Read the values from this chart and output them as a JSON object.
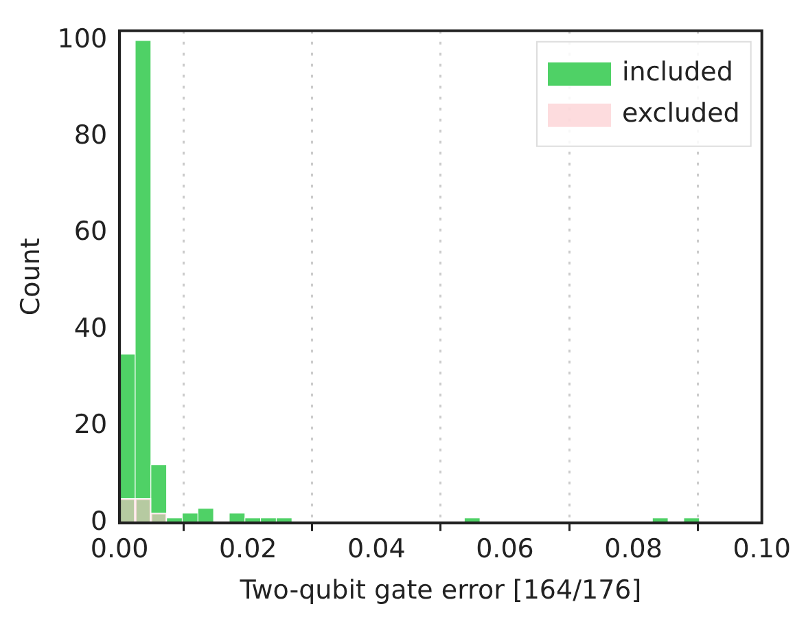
{
  "chart_data": {
    "type": "histogram",
    "xlabel": "Two-qubit gate error [164/176]",
    "ylabel": "Count",
    "bins": [
      0,
      0.00244,
      0.00488,
      0.00732,
      0.00976,
      0.0122,
      0.01464,
      0.01708,
      0.01952,
      0.02196,
      0.0244,
      0.02684,
      0.02928,
      0.03172,
      0.03416,
      0.0366,
      0.03904,
      0.04148,
      0.04392,
      0.04636,
      0.0488,
      0.05124,
      0.05368,
      0.05612,
      0.05856,
      0.061,
      0.06344,
      0.06588,
      0.06832,
      0.07076,
      0.0732,
      0.07564,
      0.07808,
      0.08052,
      0.08296,
      0.0854,
      0.08784,
      0.09028
    ],
    "series": [
      {
        "name": "included",
        "color": "#4fd166",
        "values": [
          35,
          100,
          12,
          1,
          2,
          3,
          0,
          2,
          1,
          1,
          1,
          0,
          0,
          0,
          0,
          0,
          0,
          0,
          0,
          0,
          0,
          0,
          1,
          0,
          0,
          0,
          0,
          0,
          0,
          0,
          0,
          0,
          0,
          0,
          1,
          0,
          1
        ]
      },
      {
        "name": "excluded",
        "color": "#fcc4c8",
        "values": [
          5,
          5,
          2,
          0,
          0,
          0,
          0,
          0,
          0,
          0,
          0,
          0,
          0,
          0,
          0,
          0,
          0,
          0,
          0,
          0,
          0,
          0,
          0,
          0,
          0,
          0,
          0,
          0,
          0,
          0,
          0,
          0,
          0,
          0,
          0,
          0,
          0
        ]
      }
    ],
    "xlim": [
      0,
      0.1
    ],
    "xticks": [
      {
        "value": 0,
        "label": "0.00"
      },
      {
        "value": 0.02,
        "label": "0.02"
      },
      {
        "value": 0.04,
        "label": "0.04"
      },
      {
        "value": 0.06,
        "label": "0.06"
      },
      {
        "value": 0.08,
        "label": "0.08"
      },
      {
        "value": 0.1,
        "label": "0.10"
      }
    ],
    "ylim": [
      0,
      102
    ],
    "yticks": [
      0,
      20,
      40,
      60,
      80,
      100
    ],
    "grid": "x",
    "legend": "top right"
  }
}
